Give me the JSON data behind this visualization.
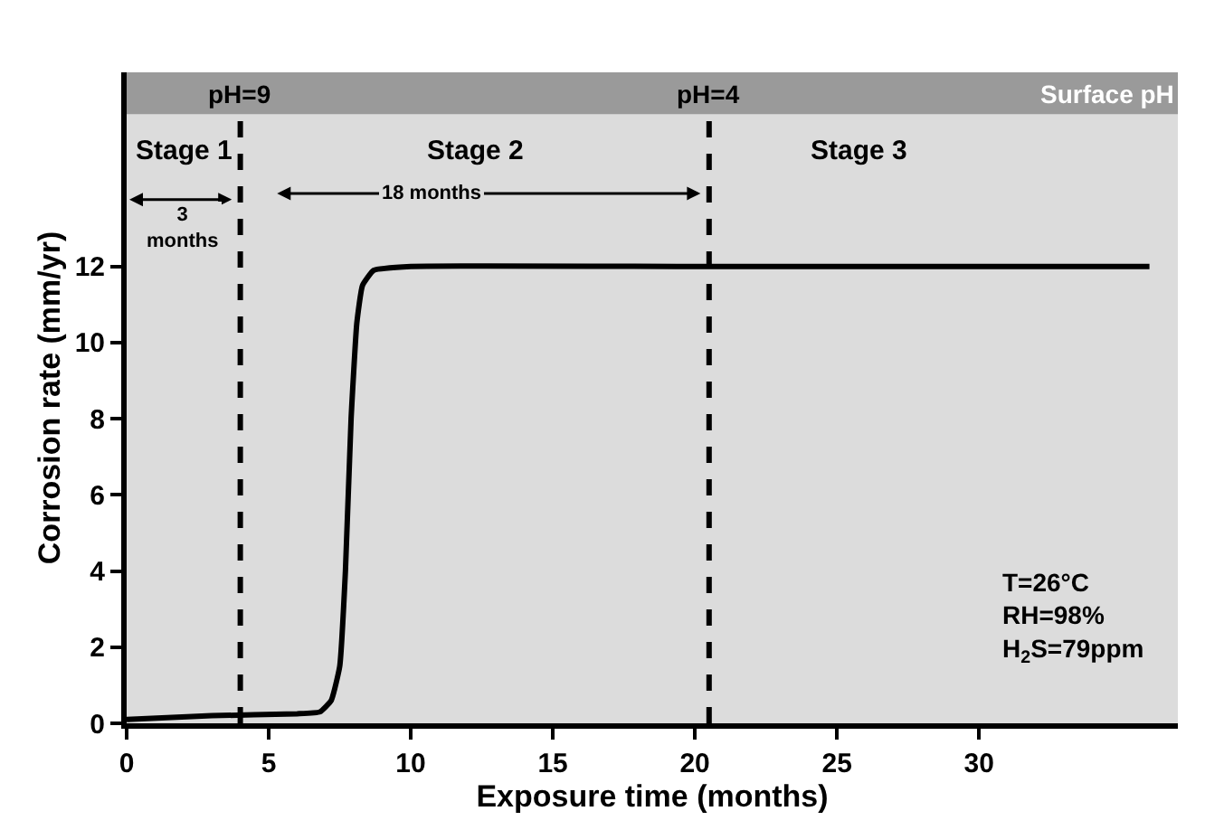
{
  "chart_data": {
    "type": "line",
    "xlabel": "Exposure time (months)",
    "ylabel": "Corrosion rate (mm/yr)",
    "x": [
      0,
      3,
      6,
      6.8,
      7.2,
      7.5,
      7.7,
      7.9,
      8.1,
      8.3,
      8.7,
      10,
      20,
      36
    ],
    "series": [
      {
        "color": "#000000",
        "values": [
          0.1,
          0.2,
          0.25,
          0.3,
          0.6,
          1.5,
          4,
          8,
          10.5,
          11.5,
          11.9,
          12,
          12,
          12
        ]
      }
    ],
    "xlim": [
      0,
      37
    ],
    "xticks": [
      0,
      5,
      10,
      15,
      20,
      25,
      30
    ],
    "ylim": [
      0,
      17.1
    ],
    "yticks": [
      0,
      2,
      4,
      6,
      8,
      10,
      12
    ],
    "grid": false,
    "legend": false,
    "marker": "none",
    "line_style": "solid",
    "ref_lines": [
      {
        "axis": "x",
        "value": 4,
        "color": "#000000",
        "line_style": "dashed"
      },
      {
        "axis": "x",
        "value": 20.5,
        "color": "#000000",
        "line_style": "dashed"
      }
    ],
    "bands": [
      {
        "axis": "y",
        "from": 16,
        "to": 17.1,
        "label": "Surface pH",
        "color": "#9a9a9a"
      }
    ],
    "annotations": [
      "Stage 1",
      "Stage 2",
      "Stage 3",
      "3\nmonths",
      "18 months",
      "pH=9",
      "pH=4",
      "T=26°C\nRH=98%\nH$_{2}$S=79ppm"
    ]
  }
}
